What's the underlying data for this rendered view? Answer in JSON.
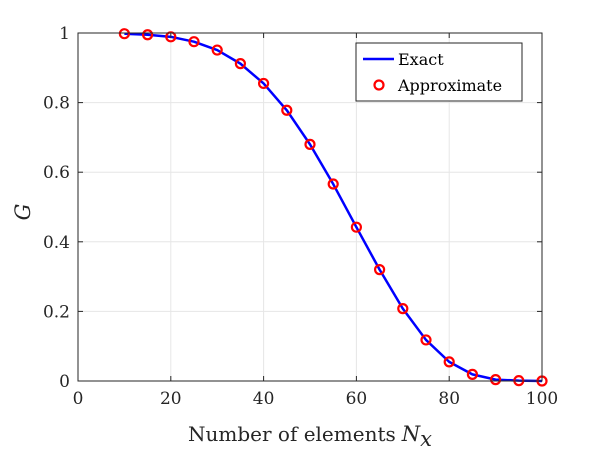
{
  "chart_data": {
    "type": "line",
    "xlabel": "Number of elements",
    "xlabel_symbol": "N",
    "xlabel_subscript": "x",
    "ylabel": "G",
    "xlim": [
      0,
      100
    ],
    "ylim": [
      0,
      1
    ],
    "xticks": [
      0,
      20,
      40,
      60,
      80,
      100
    ],
    "yticks": [
      0,
      0.2,
      0.4,
      0.6,
      0.8,
      1
    ],
    "xtick_labels": [
      "0",
      "20",
      "40",
      "60",
      "80",
      "100"
    ],
    "ytick_labels": [
      "0",
      "0.2",
      "0.4",
      "0.6",
      "0.8",
      "1"
    ],
    "grid": true,
    "legend_position": "top-right",
    "series": [
      {
        "name": "Exact",
        "style": "line",
        "color": "#0000ff",
        "x": [
          10,
          15,
          20,
          25,
          30,
          35,
          40,
          45,
          50,
          55,
          60,
          65,
          70,
          75,
          80,
          85,
          90,
          95,
          100
        ],
        "y": [
          0.998,
          0.995,
          0.989,
          0.975,
          0.951,
          0.912,
          0.855,
          0.778,
          0.68,
          0.566,
          0.442,
          0.32,
          0.208,
          0.118,
          0.055,
          0.019,
          0.004,
          0.001,
          0.0
        ]
      },
      {
        "name": "Approximate",
        "style": "markers",
        "color": "#ff0000",
        "x": [
          10,
          15,
          20,
          25,
          30,
          35,
          40,
          45,
          50,
          55,
          60,
          65,
          70,
          75,
          80,
          85,
          90,
          95,
          100
        ],
        "y": [
          0.998,
          0.995,
          0.989,
          0.975,
          0.951,
          0.912,
          0.855,
          0.778,
          0.68,
          0.566,
          0.442,
          0.32,
          0.208,
          0.118,
          0.055,
          0.019,
          0.004,
          0.001,
          0.0
        ]
      }
    ]
  }
}
